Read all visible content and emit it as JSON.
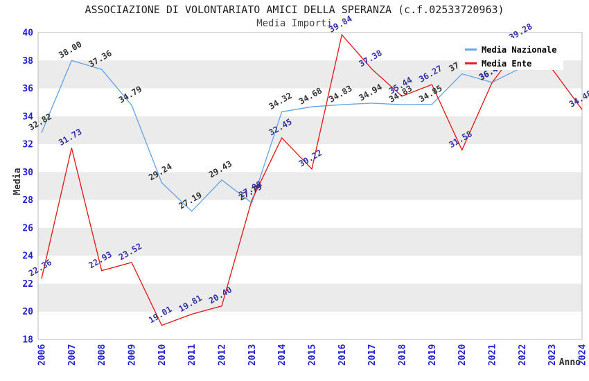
{
  "chart_data": {
    "type": "line",
    "title": "ASSOCIAZIONE DI VOLONTARIATO AMICI DELLA SPERANZA (c.f.02533720963)",
    "subtitle": "Media Importi",
    "xlabel": "Anno",
    "ylabel": "Media",
    "ylim": [
      18,
      40
    ],
    "ytick_step": 2,
    "grid": "horizontal-gray-bands",
    "legend_position": "top-right",
    "x": [
      2006,
      2007,
      2008,
      2009,
      2010,
      2011,
      2012,
      2013,
      2014,
      2015,
      2016,
      2017,
      2018,
      2019,
      2020,
      2021,
      2022,
      2023,
      2024
    ],
    "series": [
      {
        "name": "Media Nazionale",
        "color": "#6BA7E3",
        "label_color": "#333333",
        "values": [
          32.82,
          38.0,
          37.36,
          34.79,
          29.24,
          27.19,
          29.43,
          27.79,
          34.32,
          34.68,
          34.83,
          34.94,
          34.83,
          34.85,
          37.04,
          36.43,
          37.5,
          null,
          null
        ]
      },
      {
        "name": "Media Ente",
        "color": "#DD2222",
        "label_color": "#3333A0",
        "values": [
          22.36,
          31.73,
          22.93,
          23.52,
          19.01,
          19.81,
          20.4,
          27.98,
          32.45,
          30.22,
          39.84,
          37.38,
          35.44,
          36.27,
          31.58,
          36.4,
          39.28,
          37.4,
          34.48
        ]
      }
    ]
  },
  "colors": {
    "band": "#ebebeb",
    "border": "#bbbbbb",
    "tick": "#2222cc",
    "title": "#222222",
    "subtitle": "#444444",
    "axis_title": "#333333",
    "legend_bg": "#ffffff",
    "nazionale_line": "#6BA7E3",
    "ente_line": "#DD2222"
  }
}
